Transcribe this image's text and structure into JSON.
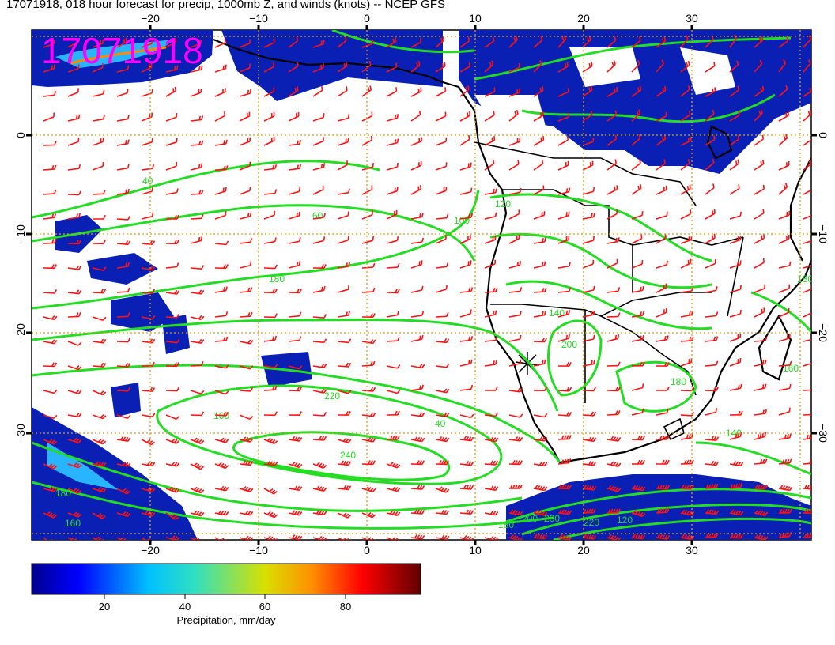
{
  "title": "17071918, 018 hour forecast for precip, 1000mb Z, and winds (knots) -- NCEP GFS",
  "stamp": "17071918",
  "lon_ticks": [
    "−20",
    "−10",
    "0",
    "10",
    "20",
    "30"
  ],
  "lat_ticks": [
    "0",
    "−10",
    "−20",
    "−30"
  ],
  "contour_labels": [
    "40",
    "60",
    "100",
    "120",
    "140",
    "160",
    "180",
    "200",
    "220",
    "240",
    "40",
    "180",
    "160",
    "200",
    "180",
    "200",
    "220",
    "180",
    "180",
    "160",
    "140",
    "120"
  ],
  "colorbar": {
    "label": "Precipitation, mm/day",
    "ticks": [
      "20",
      "40",
      "60",
      "80"
    ]
  },
  "colors": {
    "contour": "#22dd22",
    "barb": "#ff1111",
    "grid": "#d4a017",
    "stamp": "#ff00ff"
  }
}
